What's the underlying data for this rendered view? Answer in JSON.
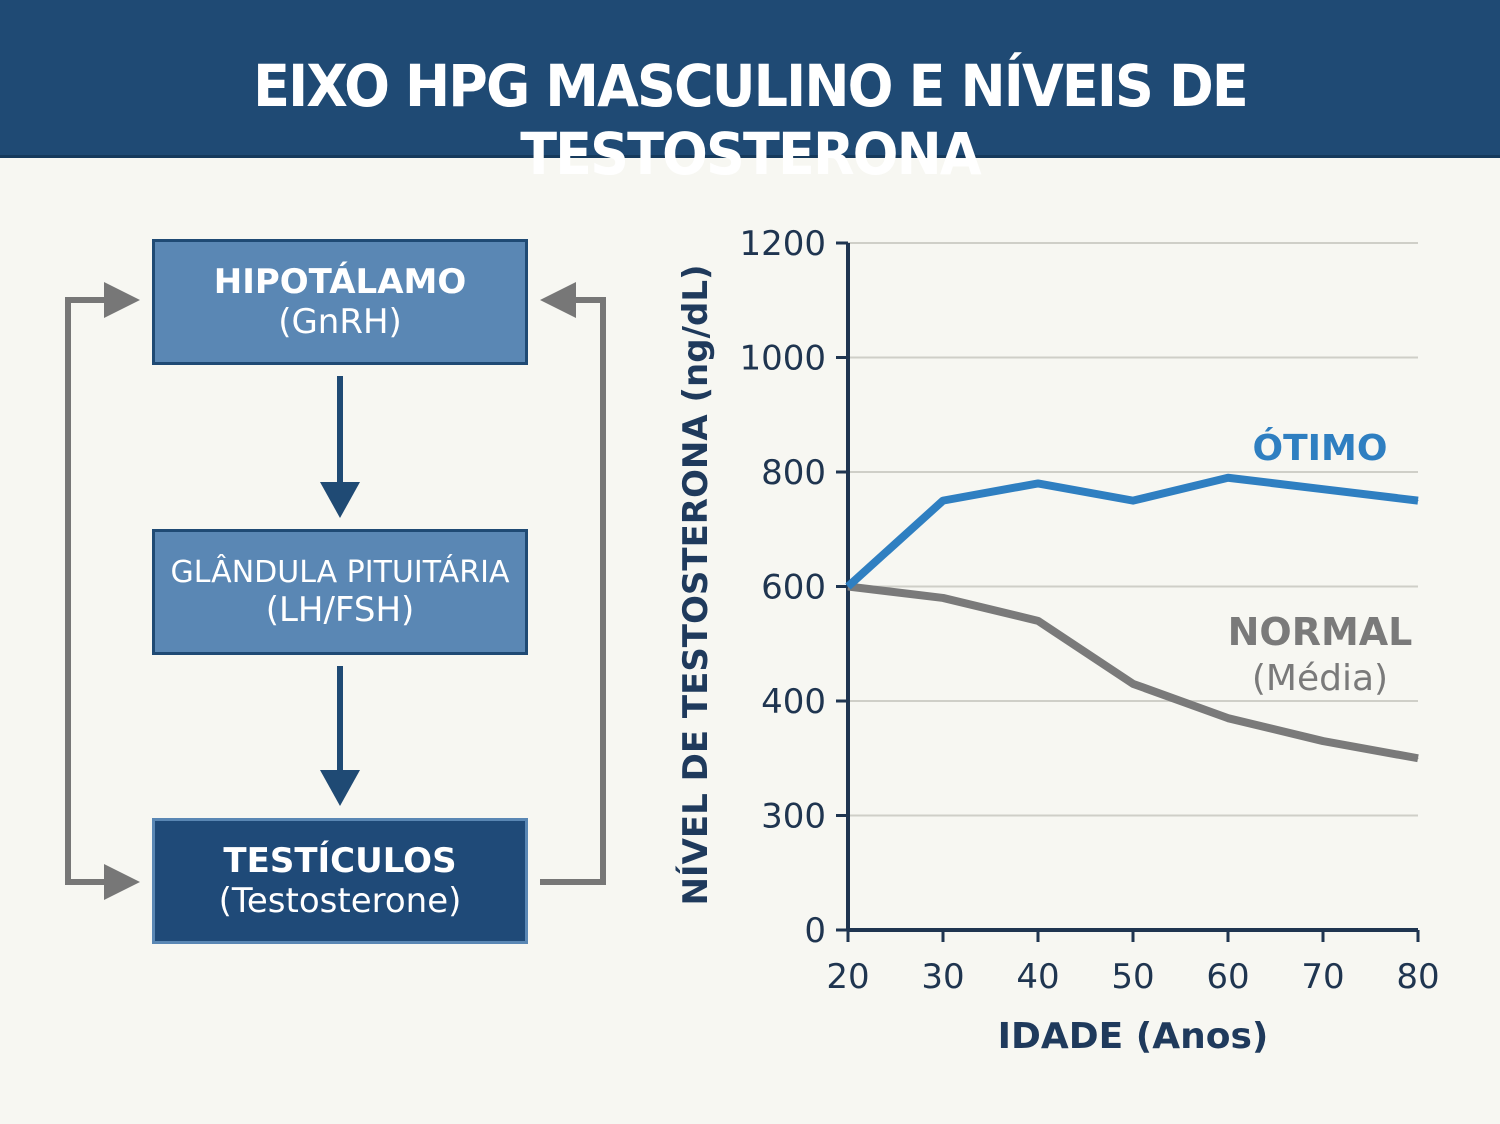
{
  "header": {
    "title": "EIXO HPG MASCULINO E NÍVEIS DE TESTOSTERONA"
  },
  "diagram": {
    "boxes": [
      {
        "name": "HIPOTÁLAMO",
        "hormone": "(GnRH)"
      },
      {
        "name": "GLÂNDULA PITUITÁRIA",
        "hormone": "(LH/FSH)"
      },
      {
        "name": "TESTÍCULOS",
        "hormone": "(Testosterone)"
      }
    ]
  },
  "colors": {
    "header": "#1f4a74",
    "box": "#5a87b4",
    "box_dark": "#1f4a78",
    "optimal": "#2f7fc1",
    "normal": "#7a7a7a",
    "axis": "#1f3550"
  },
  "chart_data": {
    "type": "line",
    "xlabel": "IDADE (Anos)",
    "ylabel": "NÍVEL DE TESTOSTERONA (ng/dL)",
    "x": [
      20,
      30,
      40,
      50,
      60,
      70,
      80
    ],
    "xticks": [
      "20",
      "30",
      "40",
      "50",
      "60",
      "70",
      "80"
    ],
    "yticks": [
      0,
      300,
      400,
      600,
      800,
      1000,
      1200
    ],
    "ytick_labels": [
      "0",
      "300",
      "400",
      "600",
      "800",
      "1000",
      "1200"
    ],
    "xlim": [
      20,
      80
    ],
    "ylim": [
      0,
      1200
    ],
    "grid": true,
    "series": [
      {
        "name": "ÓTIMO",
        "color": "#2f7fc1",
        "values": [
          600,
          750,
          780,
          750,
          790,
          770,
          750
        ]
      },
      {
        "name": "NORMAL",
        "subname": "(Média)",
        "color": "#7a7a7a",
        "values": [
          600,
          580,
          540,
          430,
          385,
          365,
          350
        ]
      }
    ]
  }
}
